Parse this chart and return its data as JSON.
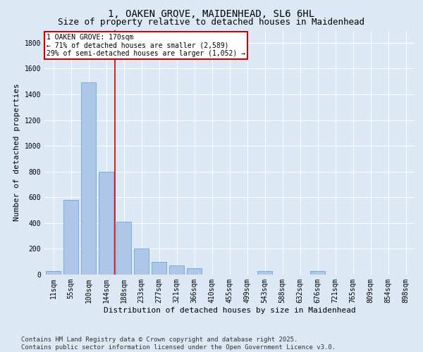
{
  "title_line1": "1, OAKEN GROVE, MAIDENHEAD, SL6 6HL",
  "title_line2": "Size of property relative to detached houses in Maidenhead",
  "xlabel": "Distribution of detached houses by size in Maidenhead",
  "ylabel": "Number of detached properties",
  "categories": [
    "11sqm",
    "55sqm",
    "100sqm",
    "144sqm",
    "188sqm",
    "233sqm",
    "277sqm",
    "321sqm",
    "366sqm",
    "410sqm",
    "455sqm",
    "499sqm",
    "543sqm",
    "588sqm",
    "632sqm",
    "676sqm",
    "721sqm",
    "765sqm",
    "809sqm",
    "854sqm",
    "898sqm"
  ],
  "values": [
    30,
    580,
    1490,
    800,
    410,
    200,
    100,
    70,
    50,
    0,
    0,
    0,
    30,
    0,
    0,
    30,
    0,
    0,
    0,
    0,
    0
  ],
  "bar_color": "#aec6e8",
  "bar_edge_color": "#5b9bd5",
  "vline_x": 3.5,
  "vline_color": "#cc0000",
  "annotation_text": "1 OAKEN GROVE: 170sqm\n← 71% of detached houses are smaller (2,589)\n29% of semi-detached houses are larger (1,052) →",
  "annotation_box_color": "#cc0000",
  "annotation_text_color": "#000000",
  "ylim": [
    0,
    1900
  ],
  "yticks": [
    0,
    200,
    400,
    600,
    800,
    1000,
    1200,
    1400,
    1600,
    1800
  ],
  "bg_color": "#dce9f5",
  "plot_bg_color": "#dce9f5",
  "footer_text": "Contains HM Land Registry data © Crown copyright and database right 2025.\nContains public sector information licensed under the Open Government Licence v3.0.",
  "title_fontsize": 10,
  "subtitle_fontsize": 9,
  "axis_label_fontsize": 8,
  "tick_fontsize": 7,
  "footer_fontsize": 6.5
}
